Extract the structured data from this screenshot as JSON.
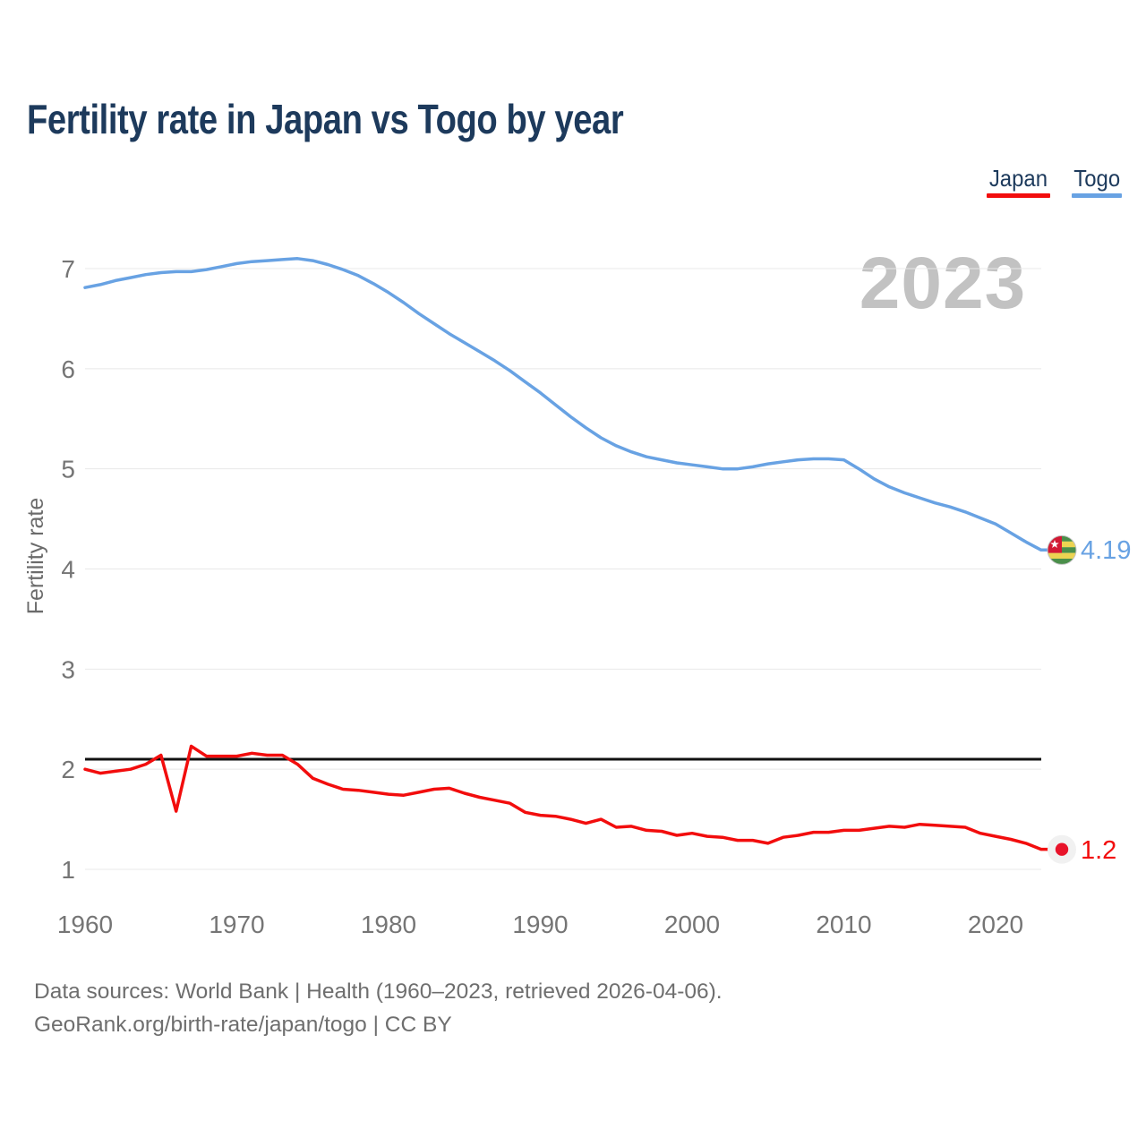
{
  "header": {
    "title": "Fertility rate in Japan vs Togo by year"
  },
  "legend": {
    "items": [
      {
        "label": "Japan",
        "color": "#f20d0d"
      },
      {
        "label": "Togo",
        "color": "#68a2e3"
      }
    ]
  },
  "chart": {
    "watermark": "2023",
    "y_axis_title": "Fertility rate"
  },
  "chart_data": {
    "type": "line",
    "title": "Fertility rate in Japan vs Togo by year",
    "xlabel": "",
    "ylabel": "Fertility rate",
    "x_start": 1960,
    "x_end": 2023,
    "xticks": [
      1960,
      1970,
      1980,
      1990,
      2000,
      2010,
      2020
    ],
    "yticks": [
      1,
      2,
      3,
      4,
      5,
      6,
      7
    ],
    "ylim": [
      0.8,
      7.3
    ],
    "grid": "horizontal",
    "legend_position": "top-right",
    "reference_line": {
      "value": 2.1,
      "color": "#111111"
    },
    "series": [
      {
        "name": "Japan",
        "color": "#f20d0d",
        "end_label": "1.2",
        "end_value": 1.2,
        "marker": "japan-flag",
        "values": [
          2.0,
          1.96,
          1.98,
          2.0,
          2.05,
          2.14,
          1.58,
          2.23,
          2.13,
          2.13,
          2.13,
          2.16,
          2.14,
          2.14,
          2.05,
          1.91,
          1.85,
          1.8,
          1.79,
          1.77,
          1.75,
          1.74,
          1.77,
          1.8,
          1.81,
          1.76,
          1.72,
          1.69,
          1.66,
          1.57,
          1.54,
          1.53,
          1.5,
          1.46,
          1.5,
          1.42,
          1.43,
          1.39,
          1.38,
          1.34,
          1.36,
          1.33,
          1.32,
          1.29,
          1.29,
          1.26,
          1.32,
          1.34,
          1.37,
          1.37,
          1.39,
          1.39,
          1.41,
          1.43,
          1.42,
          1.45,
          1.44,
          1.43,
          1.42,
          1.36,
          1.33,
          1.3,
          1.26,
          1.2
        ]
      },
      {
        "name": "Togo",
        "color": "#68a2e3",
        "end_label": "4.19",
        "end_value": 4.19,
        "marker": "togo-flag",
        "values": [
          6.81,
          6.84,
          6.88,
          6.91,
          6.94,
          6.96,
          6.97,
          6.97,
          6.99,
          7.02,
          7.05,
          7.07,
          7.08,
          7.09,
          7.1,
          7.08,
          7.04,
          6.99,
          6.93,
          6.85,
          6.76,
          6.66,
          6.55,
          6.45,
          6.35,
          6.26,
          6.17,
          6.08,
          5.98,
          5.87,
          5.76,
          5.64,
          5.52,
          5.41,
          5.31,
          5.23,
          5.17,
          5.12,
          5.09,
          5.06,
          5.04,
          5.02,
          5.0,
          5.0,
          5.02,
          5.05,
          5.07,
          5.09,
          5.1,
          5.1,
          5.09,
          5.0,
          4.9,
          4.82,
          4.76,
          4.71,
          4.66,
          4.62,
          4.57,
          4.51,
          4.45,
          4.36,
          4.27,
          4.19
        ]
      }
    ]
  },
  "footer": {
    "line1": "Data sources: World Bank | Health (1960–2023, retrieved 2026-04-06).",
    "line2": "GeoRank.org/birth-rate/japan/togo | CC BY"
  }
}
